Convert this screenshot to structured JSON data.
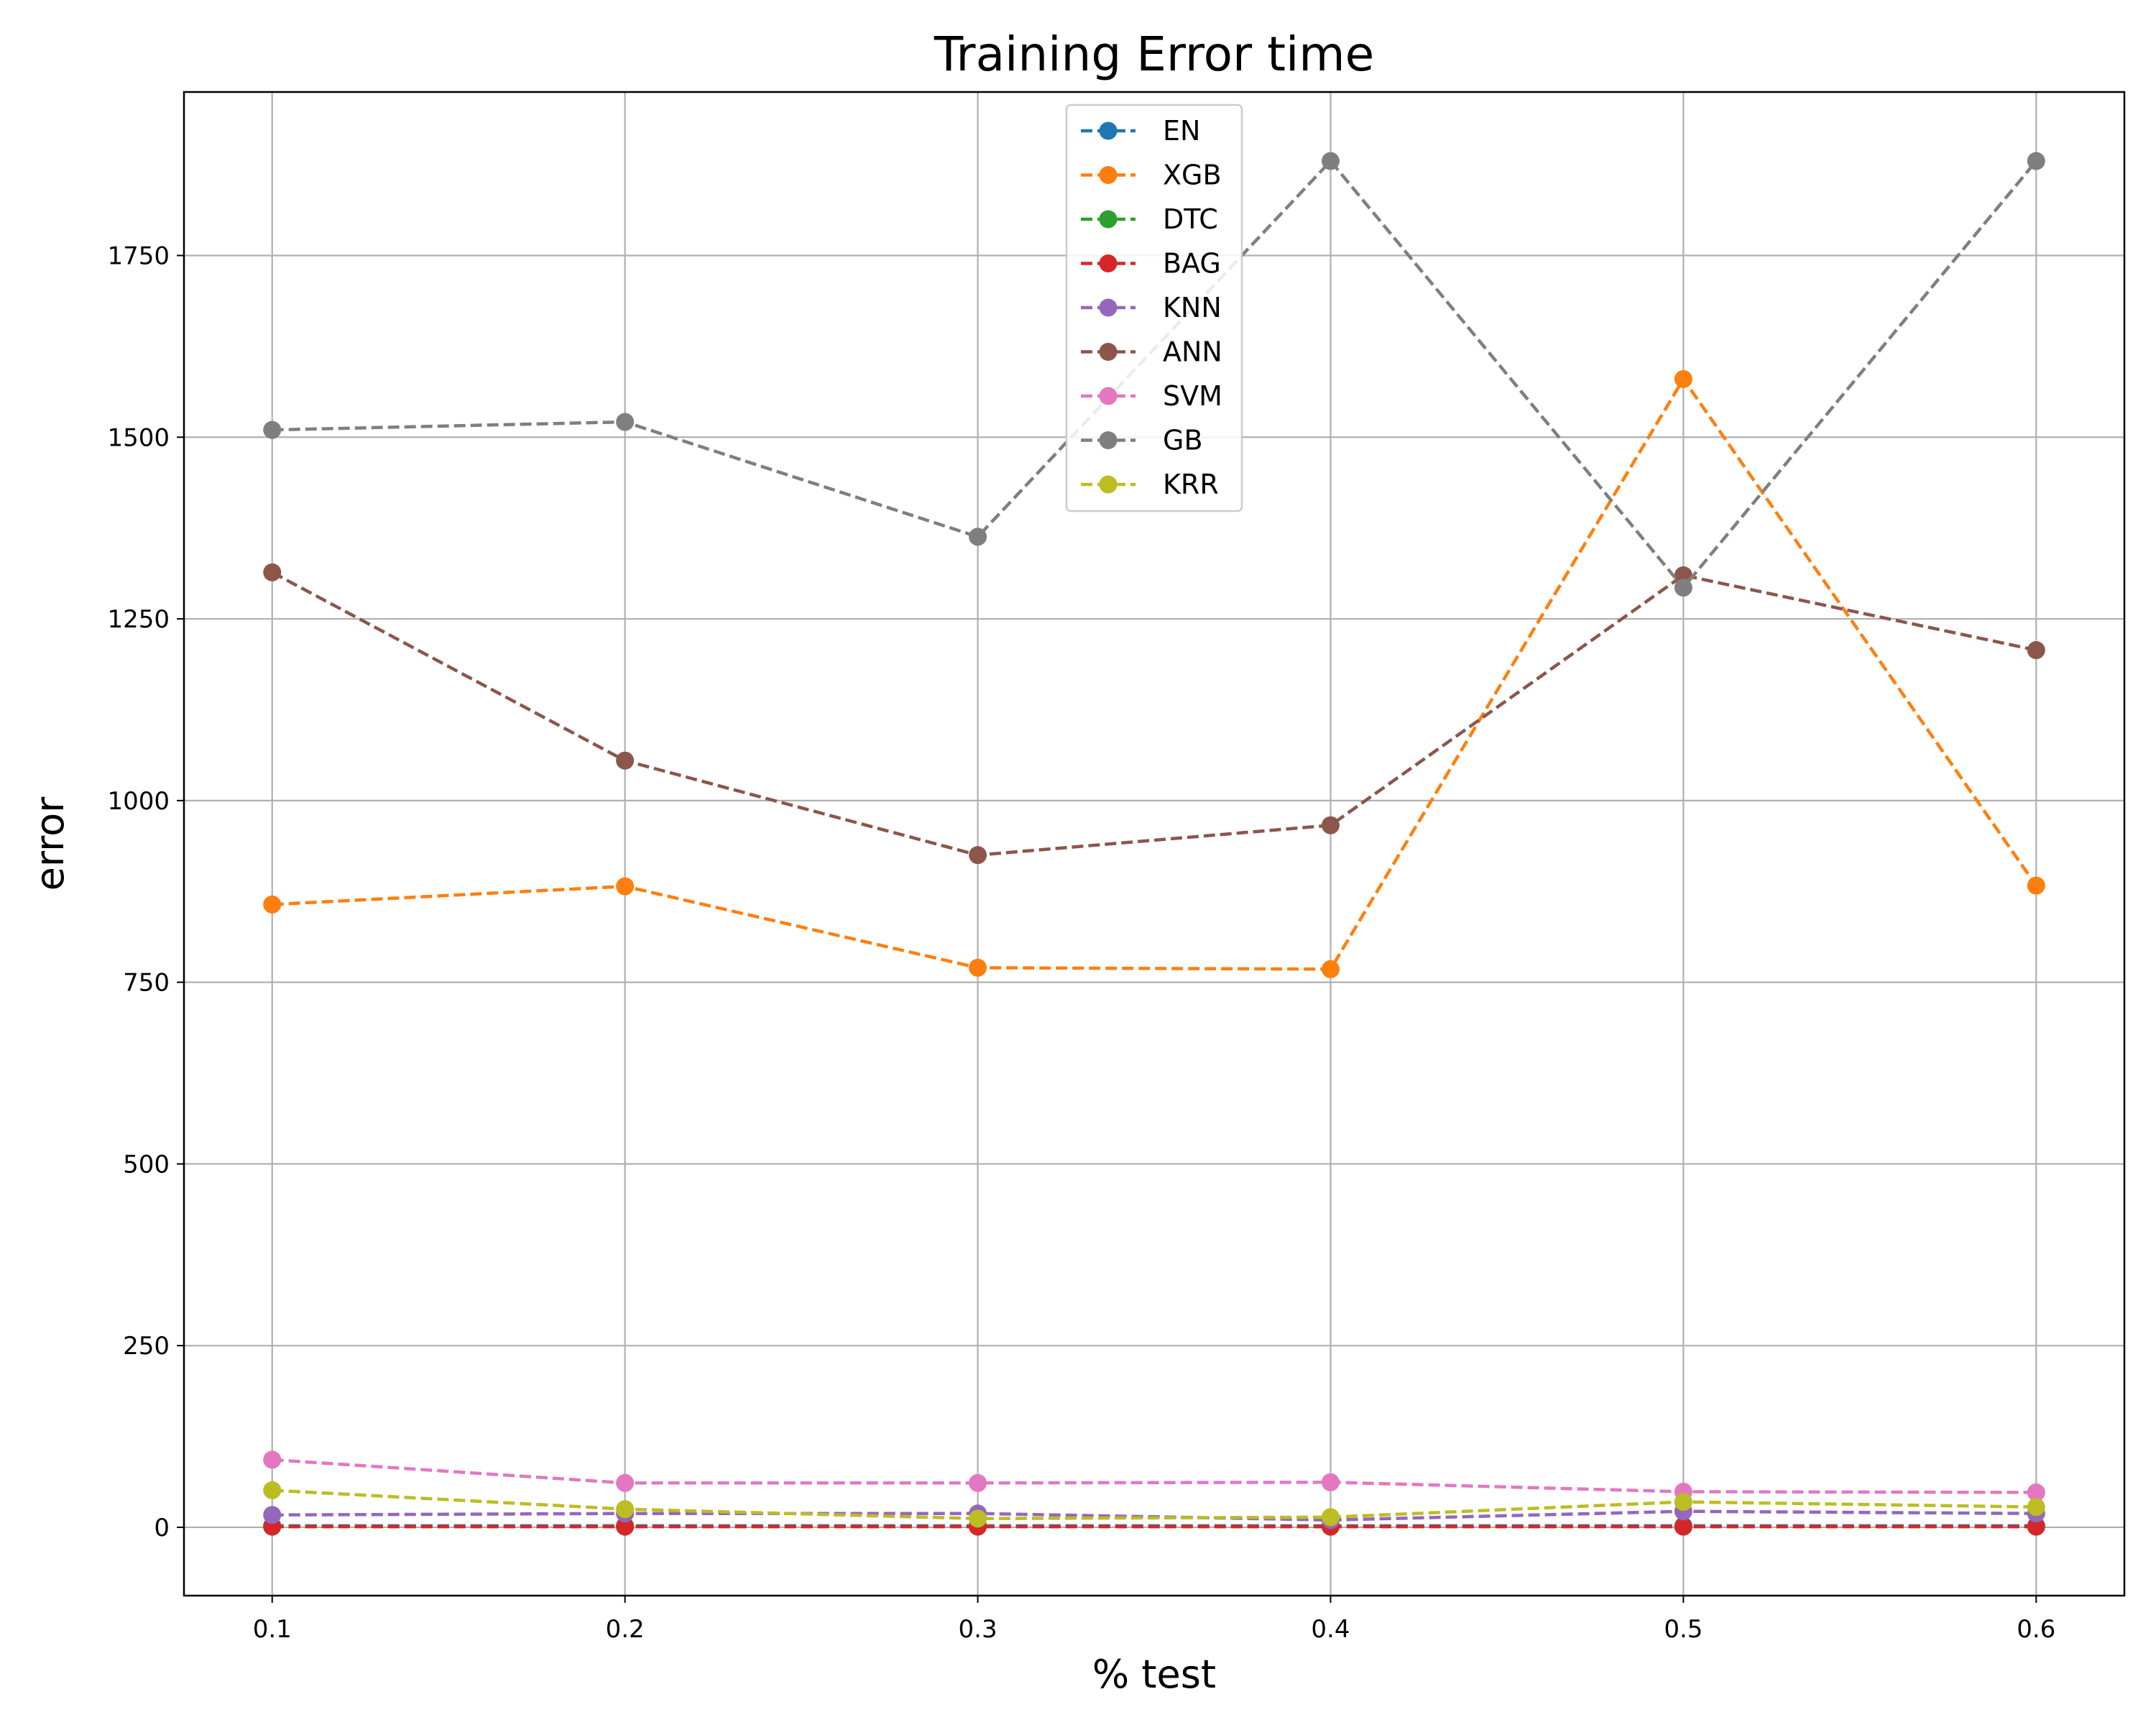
{
  "chart_data": {
    "type": "line",
    "title": "Training Error time",
    "xlabel": "% test",
    "ylabel": "error",
    "x": [
      0.1,
      0.2,
      0.3,
      0.4,
      0.5,
      0.6
    ],
    "x_ticks": [
      "0.1",
      "0.2",
      "0.3",
      "0.4",
      "0.5",
      "0.6"
    ],
    "y_ticks": [
      0,
      250,
      500,
      750,
      1000,
      1250,
      1500,
      1750
    ],
    "xlim": [
      0.075,
      0.625
    ],
    "ylim": [
      -94,
      1975
    ],
    "grid": true,
    "legend_position": "top-center",
    "line_style": "dashed",
    "marker": "circle",
    "series": [
      {
        "name": "EN",
        "color": "#1f77b4",
        "values": [
          2,
          2,
          2,
          2,
          2,
          2
        ]
      },
      {
        "name": "XGB",
        "color": "#ff7f0e",
        "values": [
          857,
          882,
          770,
          768,
          1580,
          883
        ]
      },
      {
        "name": "DTC",
        "color": "#2ca02c",
        "values": [
          1,
          1,
          1,
          1,
          1,
          1
        ]
      },
      {
        "name": "BAG",
        "color": "#d62728",
        "values": [
          1,
          1,
          1,
          1,
          1,
          1
        ]
      },
      {
        "name": "KNN",
        "color": "#9467bd",
        "values": [
          17,
          19,
          19,
          10,
          22,
          19
        ]
      },
      {
        "name": "ANN",
        "color": "#8c564b",
        "values": [
          1314,
          1055,
          925,
          966,
          1310,
          1207
        ]
      },
      {
        "name": "SVM",
        "color": "#e377c2",
        "values": [
          93,
          61,
          61,
          62,
          49,
          48
        ]
      },
      {
        "name": "GB",
        "color": "#7f7f7f",
        "values": [
          1510,
          1521,
          1363,
          1880,
          1293,
          1880
        ]
      },
      {
        "name": "KRR",
        "color": "#bcbd22",
        "values": [
          51,
          25,
          12,
          14,
          35,
          28
        ]
      }
    ]
  }
}
